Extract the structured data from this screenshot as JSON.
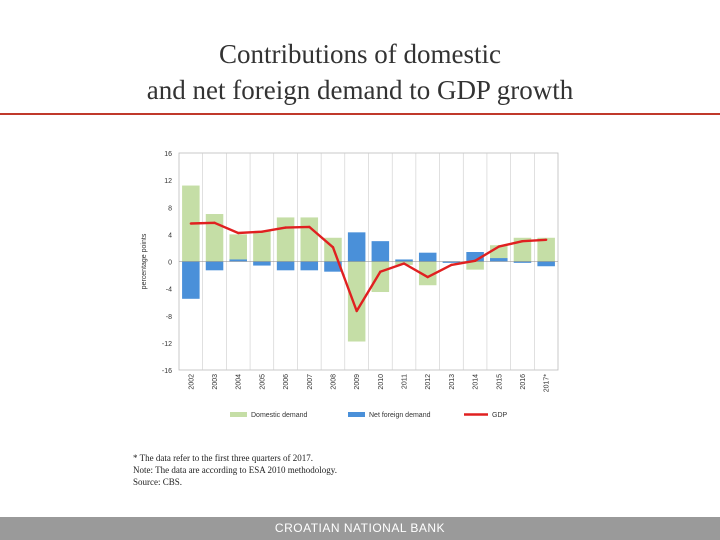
{
  "slide": {
    "title_line1": "Contributions of domestic",
    "title_line2": "and net foreign demand to GDP growth",
    "notes": [
      "* The data refer to the first three quarters of 2017.",
      "Note: The data are according to ESA 2010 methodology.",
      "Source: CBS."
    ],
    "footer": "CROATIAN NATIONAL BANK",
    "colors": {
      "accent_line": "#c0392b",
      "domestic": "#c5dea6",
      "net_foreign": "#4a90d9",
      "gdp": "#e02020",
      "footer_bg": "#9a9a9a"
    }
  },
  "chart_data": {
    "type": "bar",
    "categories": [
      "2002",
      "2003",
      "2004",
      "2005",
      "2006",
      "2007",
      "2008",
      "2009",
      "2010",
      "2011",
      "2012",
      "2013",
      "2014",
      "2015",
      "2016",
      "2017*"
    ],
    "series": [
      {
        "name": "Domestic demand",
        "kind": "bar",
        "values": [
          11.2,
          7.0,
          4.0,
          4.5,
          6.5,
          6.5,
          3.5,
          -11.8,
          -4.5,
          -0.5,
          -3.5,
          0.0,
          -1.2,
          2.4,
          3.5,
          3.5
        ]
      },
      {
        "name": "Net foreign demand",
        "kind": "bar",
        "values": [
          -5.5,
          -1.3,
          0.3,
          -0.6,
          -1.3,
          -1.3,
          -1.5,
          4.3,
          3.0,
          0.3,
          1.3,
          -0.2,
          1.4,
          0.5,
          -0.2,
          -0.7
        ]
      },
      {
        "name": "GDP",
        "kind": "line",
        "values": [
          5.6,
          5.7,
          4.2,
          4.4,
          5.0,
          5.1,
          2.1,
          -7.3,
          -1.5,
          -0.3,
          -2.3,
          -0.5,
          0.1,
          2.2,
          3.0,
          3.2
        ]
      }
    ],
    "ylabel": "percentage points",
    "y_ticks": [
      "16",
      "12",
      "8",
      "4",
      "0",
      "-4",
      "-8",
      "-12",
      "-16"
    ],
    "ylim": [
      -16,
      16
    ],
    "grid": "vertical",
    "legend_position": "bottom"
  }
}
